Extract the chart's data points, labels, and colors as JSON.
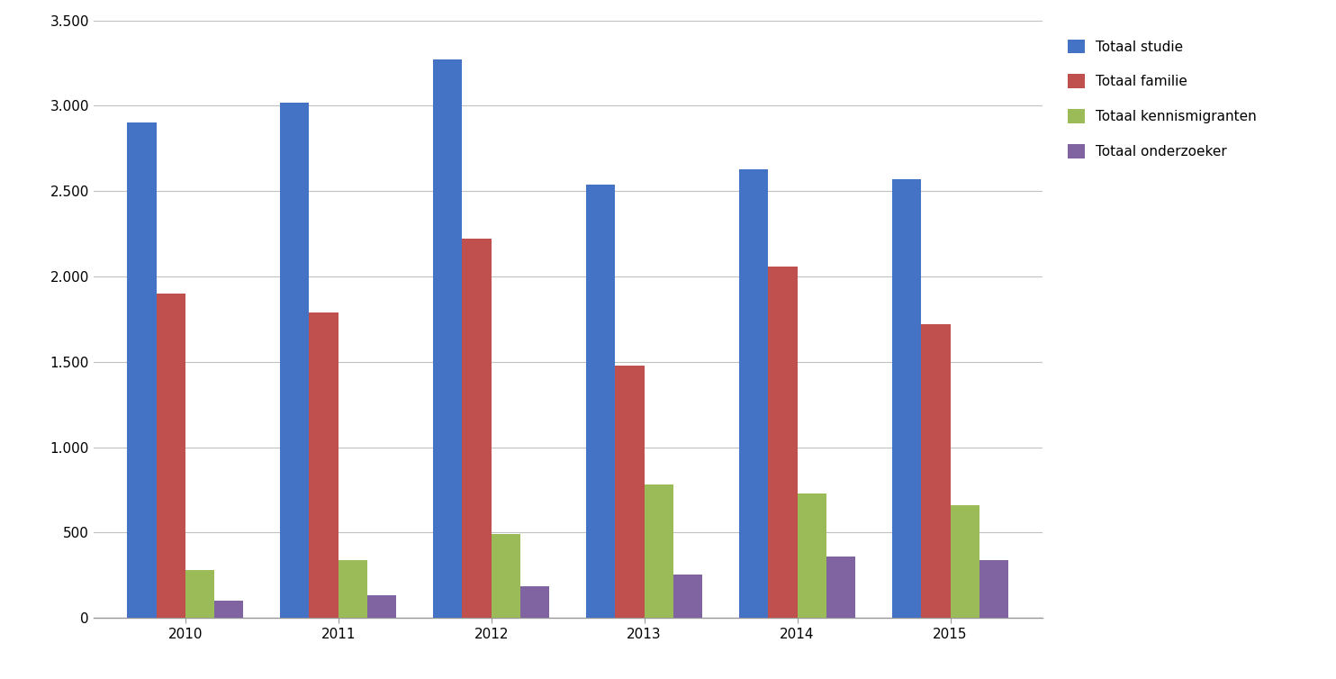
{
  "years": [
    2010,
    2011,
    2012,
    2013,
    2014,
    2015
  ],
  "series": {
    "Totaal studie": [
      2900,
      3020,
      3270,
      2540,
      2630,
      2570
    ],
    "Totaal familie": [
      1900,
      1790,
      2220,
      1480,
      2060,
      1720
    ],
    "Totaal kennismigranten": [
      280,
      340,
      490,
      780,
      730,
      660
    ],
    "Totaal onderzoeker": [
      100,
      130,
      185,
      255,
      360,
      340
    ]
  },
  "colors": {
    "Totaal studie": "#4472C4",
    "Totaal familie": "#C0504D",
    "Totaal kennismigranten": "#9BBB59",
    "Totaal onderzoeker": "#8064A2"
  },
  "ylim": [
    0,
    3500
  ],
  "yticks": [
    0,
    500,
    1000,
    1500,
    2000,
    2500,
    3000,
    3500
  ],
  "ytick_labels": [
    "0",
    "500",
    "1.000",
    "1.500",
    "2.000",
    "2.500",
    "3.000",
    "3.500"
  ],
  "background_color": "#FFFFFF",
  "grid_color": "#C0C0C0",
  "bar_width": 0.19,
  "group_width": 1.0,
  "figsize": [
    14.84,
    7.54
  ],
  "legend_fontsize": 11,
  "tick_fontsize": 11
}
